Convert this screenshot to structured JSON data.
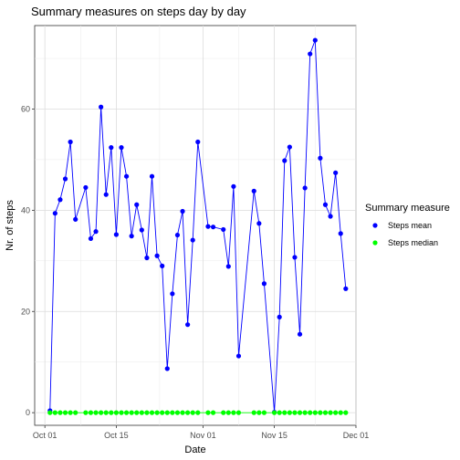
{
  "chart_data": {
    "type": "line",
    "title": "Summary measures on steps day by day",
    "xlabel": "Date",
    "ylabel": "Nr. of steps",
    "xlim": [
      "2012-09-29",
      "2012-12-01"
    ],
    "ylim": [
      -2.5,
      76.5
    ],
    "x_ticks": [
      {
        "date": "2012-10-01",
        "label": "Oct 01"
      },
      {
        "date": "2012-10-15",
        "label": "Oct 15"
      },
      {
        "date": "2012-11-01",
        "label": "Nov 01"
      },
      {
        "date": "2012-11-15",
        "label": "Nov 15"
      },
      {
        "date": "2012-12-01",
        "label": "Dec 01"
      }
    ],
    "y_ticks": [
      0,
      20,
      40,
      60
    ],
    "grid": true,
    "legend": {
      "title": "Summary measure",
      "position": "right"
    },
    "series": [
      {
        "name": "Steps mean",
        "color": "#0000ff",
        "points": [
          [
            "2012-10-02",
            0.4
          ],
          [
            "2012-10-03",
            39.4
          ],
          [
            "2012-10-04",
            42.1
          ],
          [
            "2012-10-05",
            46.2
          ],
          [
            "2012-10-06",
            53.5
          ],
          [
            "2012-10-07",
            38.2
          ],
          [
            "2012-10-09",
            44.5
          ],
          [
            "2012-10-10",
            34.4
          ],
          [
            "2012-10-11",
            35.8
          ],
          [
            "2012-10-12",
            60.4
          ],
          [
            "2012-10-13",
            43.1
          ],
          [
            "2012-10-14",
            52.4
          ],
          [
            "2012-10-15",
            35.2
          ],
          [
            "2012-10-16",
            52.4
          ],
          [
            "2012-10-17",
            46.7
          ],
          [
            "2012-10-18",
            34.9
          ],
          [
            "2012-10-19",
            41.1
          ],
          [
            "2012-10-20",
            36.1
          ],
          [
            "2012-10-21",
            30.6
          ],
          [
            "2012-10-22",
            46.7
          ],
          [
            "2012-10-23",
            31.0
          ],
          [
            "2012-10-24",
            29.0
          ],
          [
            "2012-10-25",
            8.7
          ],
          [
            "2012-10-26",
            23.5
          ],
          [
            "2012-10-27",
            35.1
          ],
          [
            "2012-10-28",
            39.8
          ],
          [
            "2012-10-29",
            17.4
          ],
          [
            "2012-10-30",
            34.1
          ],
          [
            "2012-10-31",
            53.5
          ],
          [
            "2012-11-02",
            36.8
          ],
          [
            "2012-11-03",
            36.7
          ],
          [
            "2012-11-05",
            36.2
          ],
          [
            "2012-11-06",
            28.9
          ],
          [
            "2012-11-07",
            44.7
          ],
          [
            "2012-11-08",
            11.2
          ],
          [
            "2012-11-11",
            43.8
          ],
          [
            "2012-11-12",
            37.4
          ],
          [
            "2012-11-13",
            25.5
          ],
          [
            "2012-11-15",
            0.1
          ],
          [
            "2012-11-16",
            18.9
          ],
          [
            "2012-11-17",
            49.8
          ],
          [
            "2012-11-18",
            52.5
          ],
          [
            "2012-11-19",
            30.7
          ],
          [
            "2012-11-20",
            15.5
          ],
          [
            "2012-11-21",
            44.4
          ],
          [
            "2012-11-22",
            70.9
          ],
          [
            "2012-11-23",
            73.6
          ],
          [
            "2012-11-24",
            50.3
          ],
          [
            "2012-11-25",
            41.1
          ],
          [
            "2012-11-26",
            38.8
          ],
          [
            "2012-11-27",
            47.4
          ],
          [
            "2012-11-28",
            35.4
          ],
          [
            "2012-11-29",
            24.5
          ]
        ]
      },
      {
        "name": "Steps median",
        "color": "#00ff00",
        "points": [
          [
            "2012-10-02",
            0
          ],
          [
            "2012-10-03",
            0
          ],
          [
            "2012-10-04",
            0
          ],
          [
            "2012-10-05",
            0
          ],
          [
            "2012-10-06",
            0
          ],
          [
            "2012-10-07",
            0
          ],
          [
            "2012-10-09",
            0
          ],
          [
            "2012-10-10",
            0
          ],
          [
            "2012-10-11",
            0
          ],
          [
            "2012-10-12",
            0
          ],
          [
            "2012-10-13",
            0
          ],
          [
            "2012-10-14",
            0
          ],
          [
            "2012-10-15",
            0
          ],
          [
            "2012-10-16",
            0
          ],
          [
            "2012-10-17",
            0
          ],
          [
            "2012-10-18",
            0
          ],
          [
            "2012-10-19",
            0
          ],
          [
            "2012-10-20",
            0
          ],
          [
            "2012-10-21",
            0
          ],
          [
            "2012-10-22",
            0
          ],
          [
            "2012-10-23",
            0
          ],
          [
            "2012-10-24",
            0
          ],
          [
            "2012-10-25",
            0
          ],
          [
            "2012-10-26",
            0
          ],
          [
            "2012-10-27",
            0
          ],
          [
            "2012-10-28",
            0
          ],
          [
            "2012-10-29",
            0
          ],
          [
            "2012-10-30",
            0
          ],
          [
            "2012-10-31",
            0
          ],
          [
            "2012-11-02",
            0
          ],
          [
            "2012-11-03",
            0
          ],
          [
            "2012-11-05",
            0
          ],
          [
            "2012-11-06",
            0
          ],
          [
            "2012-11-07",
            0
          ],
          [
            "2012-11-08",
            0
          ],
          [
            "2012-11-11",
            0
          ],
          [
            "2012-11-12",
            0
          ],
          [
            "2012-11-13",
            0
          ],
          [
            "2012-11-15",
            0
          ],
          [
            "2012-11-16",
            0
          ],
          [
            "2012-11-17",
            0
          ],
          [
            "2012-11-18",
            0
          ],
          [
            "2012-11-19",
            0
          ],
          [
            "2012-11-20",
            0
          ],
          [
            "2012-11-21",
            0
          ],
          [
            "2012-11-22",
            0
          ],
          [
            "2012-11-23",
            0
          ],
          [
            "2012-11-24",
            0
          ],
          [
            "2012-11-25",
            0
          ],
          [
            "2012-11-26",
            0
          ],
          [
            "2012-11-27",
            0
          ],
          [
            "2012-11-28",
            0
          ],
          [
            "2012-11-29",
            0
          ]
        ]
      }
    ]
  }
}
